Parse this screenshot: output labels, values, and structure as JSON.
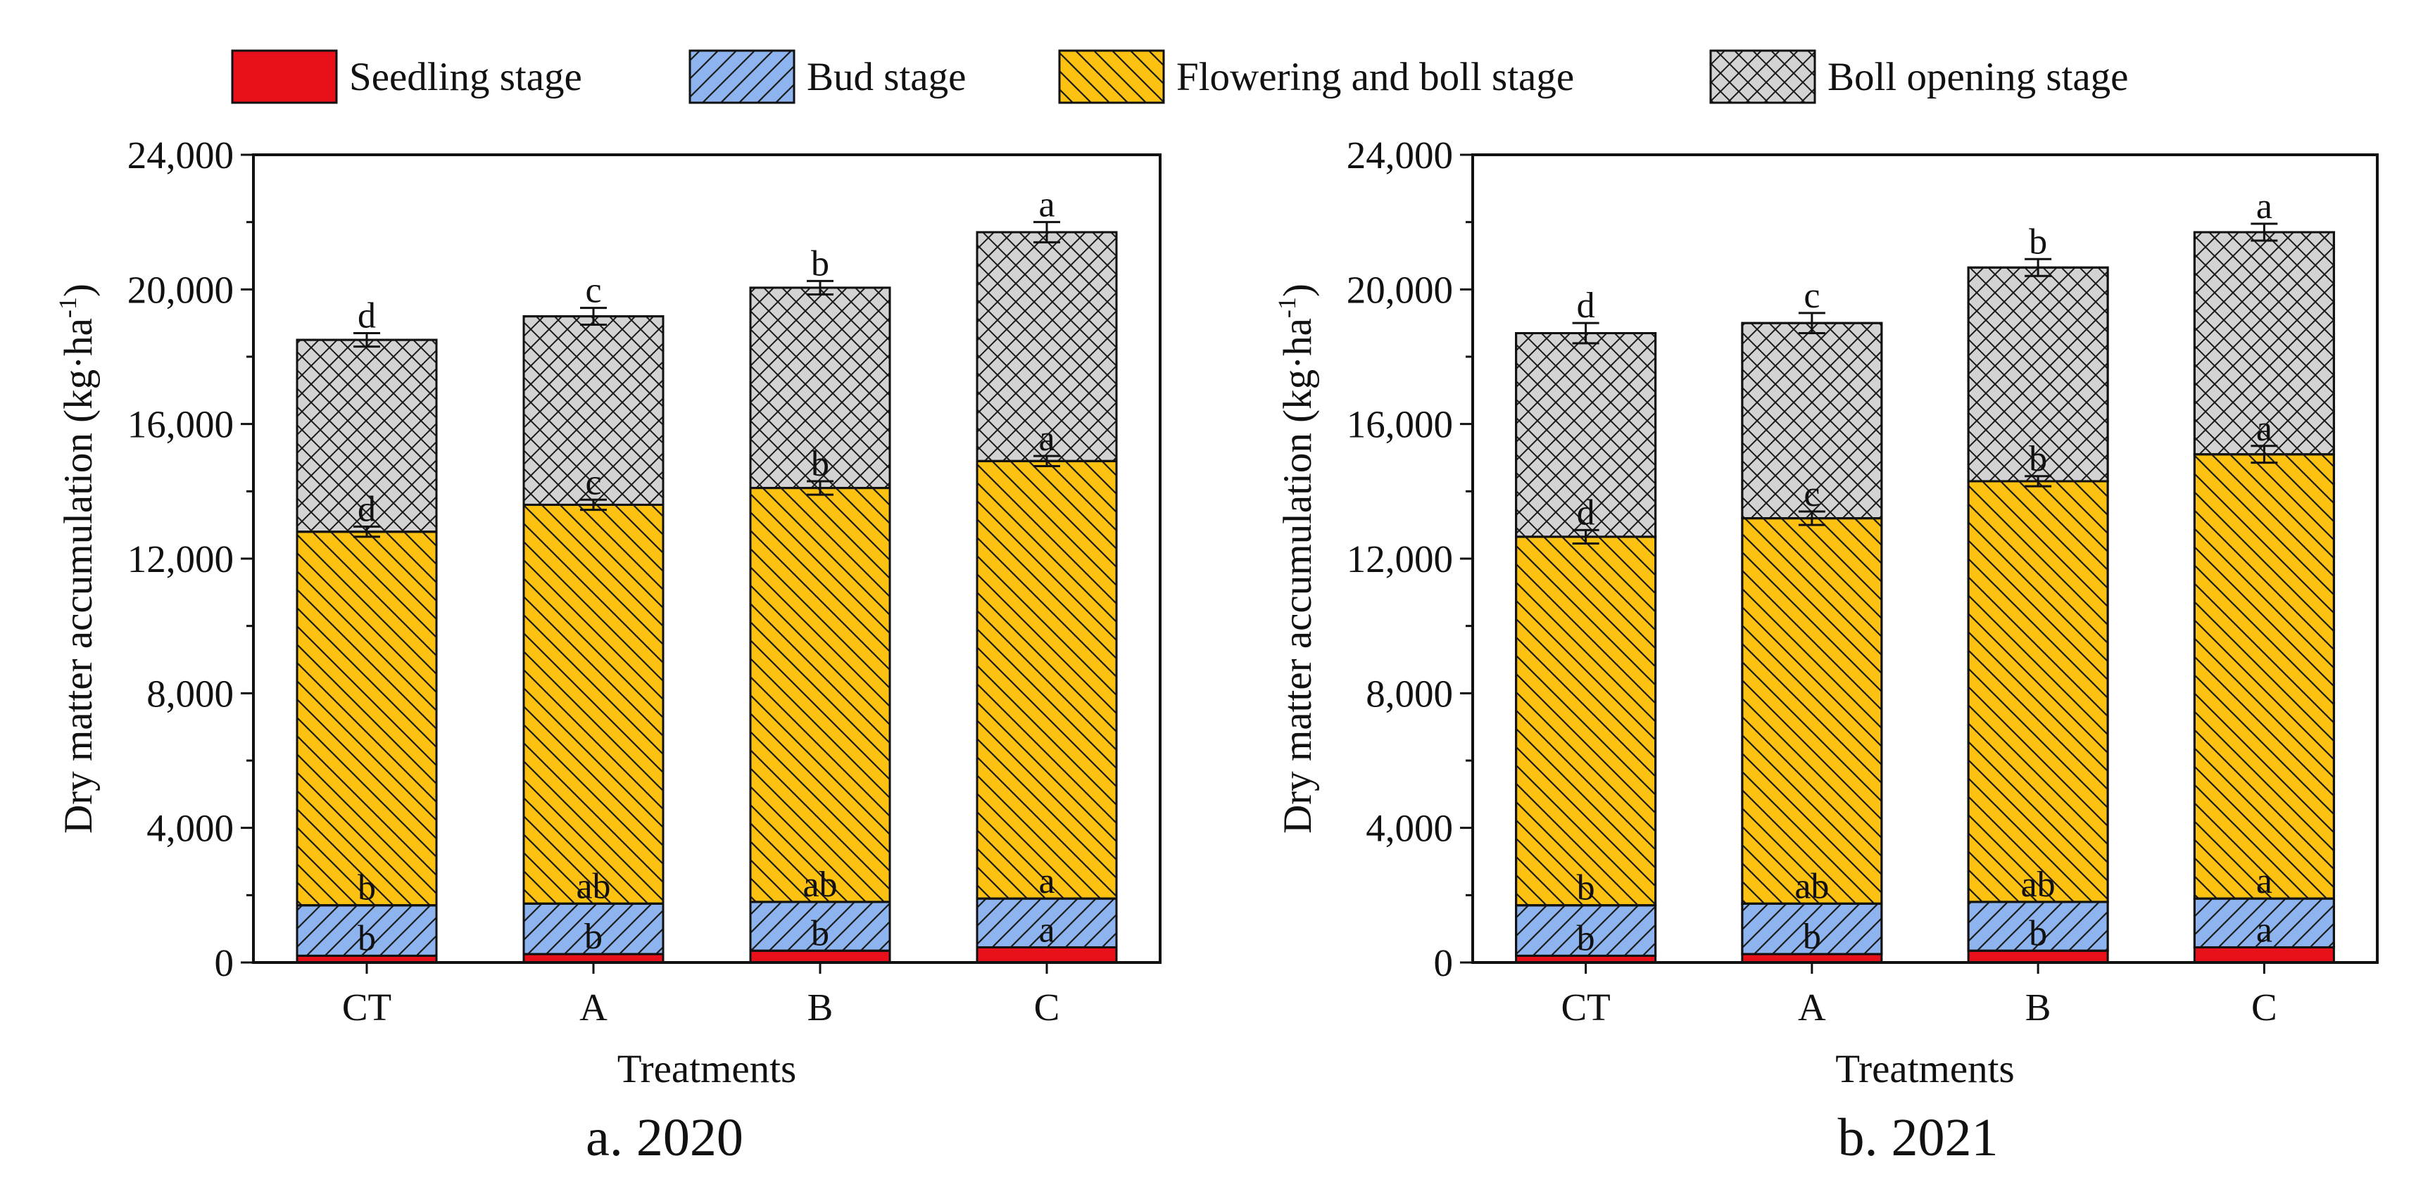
{
  "legend": [
    {
      "name": "Seedling stage",
      "color": "#e8101b",
      "pattern": "solid"
    },
    {
      "name": "Bud stage",
      "color": "#8db4ee",
      "pattern": "forward-diagonal"
    },
    {
      "name": "Flowering and boll stage",
      "color": "#fdc111",
      "pattern": "back-diagonal"
    },
    {
      "name": "Boll opening stage",
      "color": "#d3d3d3",
      "pattern": "crosshatch"
    }
  ],
  "chart_data": [
    {
      "type": "bar",
      "stacked": true,
      "caption": "a. 2020",
      "xlabel": "Treatments",
      "ylabel": "Dry matter accumulation (kg·ha",
      "ylabel_superscript": "-1",
      "ylabel_close": ")",
      "ylim": [
        0,
        24000
      ],
      "yticks": [
        0,
        4000,
        8000,
        12000,
        16000,
        20000,
        24000
      ],
      "ytick_labels": [
        "0",
        "4,000",
        "8,000",
        "12,000",
        "16,000",
        "20,000",
        "24,000"
      ],
      "categories": [
        "CT",
        "A",
        "B",
        "C"
      ],
      "cumulative": {
        "Seedling stage": [
          200,
          250,
          350,
          450
        ],
        "Bud stage": [
          1700,
          1750,
          1800,
          1900
        ],
        "Flowering and boll stage": [
          12800,
          13600,
          14100,
          14900
        ],
        "Boll opening stage": [
          18500,
          19200,
          20050,
          21700
        ]
      },
      "errors": {
        "Seedling stage": [
          0,
          0,
          0,
          0
        ],
        "Bud stage": [
          0,
          0,
          0,
          0
        ],
        "Flowering and boll stage": [
          150,
          150,
          200,
          150
        ],
        "Boll opening stage": [
          200,
          250,
          200,
          300
        ]
      },
      "letters": {
        "Seedling stage": [
          "b",
          "b",
          "b",
          "a"
        ],
        "Bud stage": [
          "b",
          "ab",
          "ab",
          "a"
        ],
        "Flowering and boll stage": [
          "d",
          "c",
          "b",
          "a"
        ],
        "Boll opening stage": [
          "d",
          "c",
          "b",
          "a"
        ]
      }
    },
    {
      "type": "bar",
      "stacked": true,
      "caption": "b. 2021",
      "xlabel": "Treatments",
      "ylabel": "Dry matter accumulation (kg·ha",
      "ylabel_superscript": "-1",
      "ylabel_close": ")",
      "ylim": [
        0,
        24000
      ],
      "yticks": [
        0,
        4000,
        8000,
        12000,
        16000,
        20000,
        24000
      ],
      "ytick_labels": [
        "0",
        "4,000",
        "8,000",
        "12,000",
        "16,000",
        "20,000",
        "24,000"
      ],
      "categories": [
        "CT",
        "A",
        "B",
        "C"
      ],
      "cumulative": {
        "Seedling stage": [
          200,
          250,
          350,
          450
        ],
        "Bud stage": [
          1700,
          1750,
          1800,
          1900
        ],
        "Flowering and boll stage": [
          12650,
          13200,
          14300,
          15100
        ],
        "Boll opening stage": [
          18700,
          19000,
          20650,
          21700
        ]
      },
      "errors": {
        "Seedling stage": [
          0,
          0,
          0,
          0
        ],
        "Bud stage": [
          0,
          0,
          0,
          0
        ],
        "Flowering and boll stage": [
          200,
          200,
          150,
          250
        ],
        "Boll opening stage": [
          300,
          300,
          250,
          250
        ]
      },
      "letters": {
        "Seedling stage": [
          "b",
          "b",
          "b",
          "a"
        ],
        "Bud stage": [
          "b",
          "ab",
          "ab",
          "a"
        ],
        "Flowering and boll stage": [
          "d",
          "c",
          "b",
          "a"
        ],
        "Boll opening stage": [
          "d",
          "c",
          "b",
          "a"
        ]
      }
    }
  ]
}
